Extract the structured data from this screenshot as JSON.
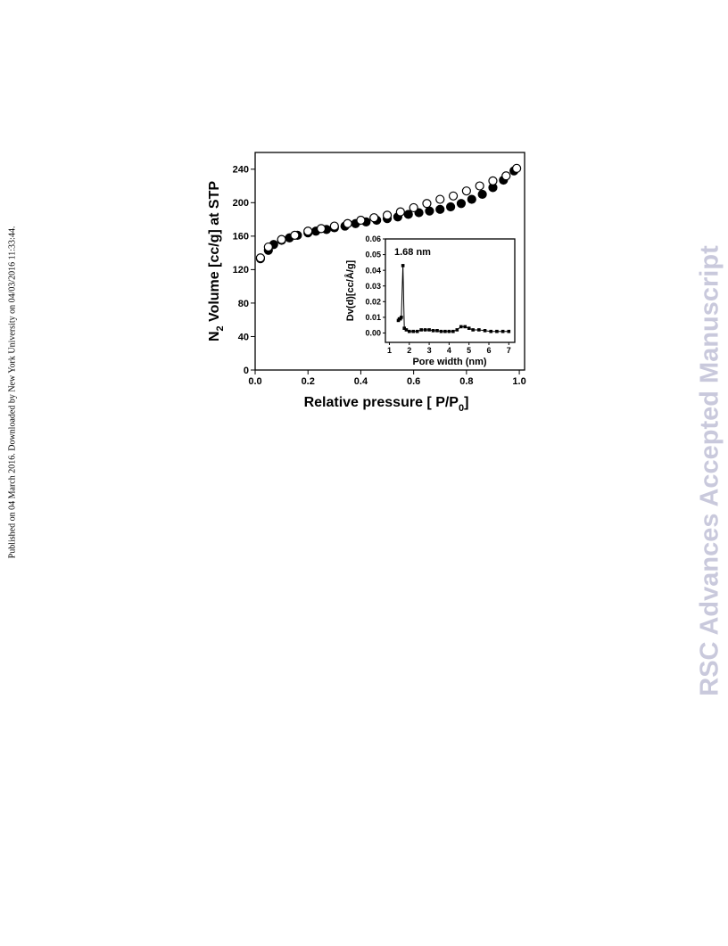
{
  "side_note": "Published on 04 March 2016. Downloaded by New York University on 04/03/2016 11:33:44.",
  "watermark": "RSC Advances Accepted Manuscript",
  "chart_data": [
    {
      "type": "scatter",
      "y_label": {
        "main": "N",
        "sub": "2",
        "rest": " Volume [cc/g] at STP"
      },
      "x_label": {
        "main": "Relative pressure [ P/P",
        "sub": "0",
        "rest": "]"
      },
      "xlim": [
        0,
        1.02
      ],
      "ylim": [
        0,
        260
      ],
      "xticks": [
        {
          "value": 0,
          "label": "0.0"
        },
        0.2,
        0.4,
        0.6,
        0.8,
        {
          "value": 1,
          "label": "1.0"
        }
      ],
      "yticks": [
        0,
        40,
        80,
        120,
        160,
        200,
        240
      ],
      "series": [
        {
          "color": "#000000",
          "marker_fill": "#000000",
          "x": [
            0.02,
            0.05,
            0.07,
            0.1,
            0.13,
            0.16,
            0.2,
            0.23,
            0.27,
            0.3,
            0.34,
            0.38,
            0.42,
            0.46,
            0.5,
            0.54,
            0.58,
            0.62,
            0.66,
            0.7,
            0.74,
            0.78,
            0.82,
            0.86,
            0.9,
            0.94,
            0.98
          ],
          "values": [
            133,
            143,
            150,
            155,
            158,
            161,
            164,
            166,
            168,
            170,
            172,
            175,
            177,
            179,
            181,
            183,
            186,
            188,
            190,
            192,
            195,
            199,
            204,
            210,
            218,
            227,
            238
          ]
        },
        {
          "color": "#000000",
          "marker_fill": "#ffffff",
          "x": [
            0.02,
            0.05,
            0.1,
            0.15,
            0.2,
            0.25,
            0.3,
            0.35,
            0.4,
            0.45,
            0.5,
            0.55,
            0.6,
            0.65,
            0.7,
            0.75,
            0.8,
            0.85,
            0.9,
            0.95,
            0.99
          ],
          "values": [
            134,
            147,
            156,
            161,
            166,
            169,
            172,
            175,
            179,
            182,
            185,
            189,
            194,
            199,
            204,
            208,
            214,
            220,
            226,
            232,
            241
          ]
        }
      ]
    },
    {
      "type": "line",
      "y_label": "Dv(d)[cc/Å/g]",
      "x_label": "Pore width (nm)",
      "annotation": "1.68 nm",
      "xlim": [
        0.8,
        7.3
      ],
      "ylim": [
        -0.006,
        0.06
      ],
      "xticks": [
        1,
        2,
        3,
        4,
        5,
        6,
        7
      ],
      "yticks": [
        {
          "value": 0,
          "label": "0.00"
        },
        {
          "value": 0.01,
          "label": "0.01"
        },
        {
          "value": 0.02,
          "label": "0.02"
        },
        {
          "value": 0.03,
          "label": "0.03"
        },
        {
          "value": 0.04,
          "label": "0.04"
        },
        {
          "value": 0.05,
          "label": "0.05"
        },
        {
          "value": 0.06,
          "label": "0.06"
        }
      ],
      "series": [
        {
          "color": "#000000",
          "x": [
            1.45,
            1.5,
            1.55,
            1.6,
            1.68,
            1.75,
            1.85,
            2.0,
            2.2,
            2.4,
            2.6,
            2.8,
            3.0,
            3.2,
            3.4,
            3.6,
            3.8,
            4.0,
            4.2,
            4.4,
            4.6,
            4.8,
            5.0,
            5.2,
            5.5,
            5.8,
            6.1,
            6.4,
            6.7,
            7.0
          ],
          "values": [
            0.008,
            0.009,
            0.009,
            0.01,
            0.043,
            0.003,
            0.002,
            0.001,
            0.001,
            0.001,
            0.002,
            0.002,
            0.002,
            0.0015,
            0.0015,
            0.001,
            0.001,
            0.001,
            0.001,
            0.002,
            0.004,
            0.004,
            0.003,
            0.002,
            0.002,
            0.0015,
            0.001,
            0.001,
            0.001,
            0.001
          ]
        }
      ]
    }
  ]
}
